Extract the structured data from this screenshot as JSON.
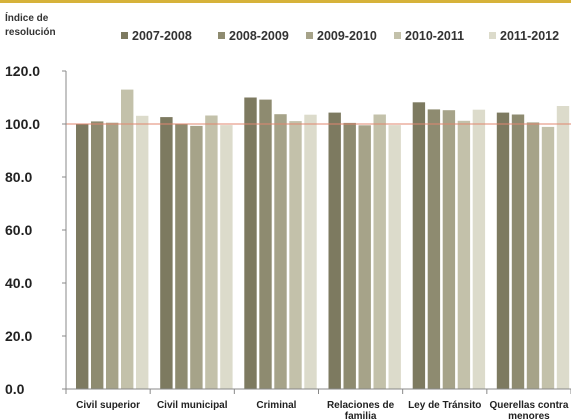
{
  "chart_data": {
    "type": "bar",
    "ylabel_lines": [
      "Índice de",
      "resolución"
    ],
    "categories": [
      [
        "Civil superior"
      ],
      [
        "Civil municipal"
      ],
      [
        "Criminal"
      ],
      [
        "Relaciones de",
        "familia"
      ],
      [
        "Ley de Tránsito"
      ],
      [
        "Querellas contra",
        "menores"
      ]
    ],
    "series": [
      {
        "name": "2007-2008",
        "color": "#7d7a60",
        "values": [
          100.2,
          102.6,
          110.0,
          104.3,
          108.2,
          104.3
        ]
      },
      {
        "name": "2008-2009",
        "color": "#8e8b70",
        "values": [
          101.0,
          100.1,
          109.2,
          100.4,
          105.5,
          103.6
        ]
      },
      {
        "name": "2009-2010",
        "color": "#a6a389",
        "values": [
          100.5,
          99.3,
          103.7,
          99.5,
          105.2,
          100.6
        ]
      },
      {
        "name": "2010-2011",
        "color": "#c3c1aa",
        "values": [
          113.0,
          103.2,
          101.1,
          103.6,
          101.2,
          98.9
        ]
      },
      {
        "name": "2011-2012",
        "color": "#dcdbcb",
        "values": [
          103.1,
          99.6,
          103.5,
          99.6,
          105.4,
          106.8
        ]
      }
    ],
    "ylim": [
      0,
      120
    ],
    "yticks": [
      "0.0",
      "20.0",
      "40.0",
      "60.0",
      "80.0",
      "100.0",
      "120.0"
    ],
    "reference_line": {
      "value": 100,
      "color": "#e0876f"
    },
    "grid": false,
    "legend_position": "top"
  }
}
